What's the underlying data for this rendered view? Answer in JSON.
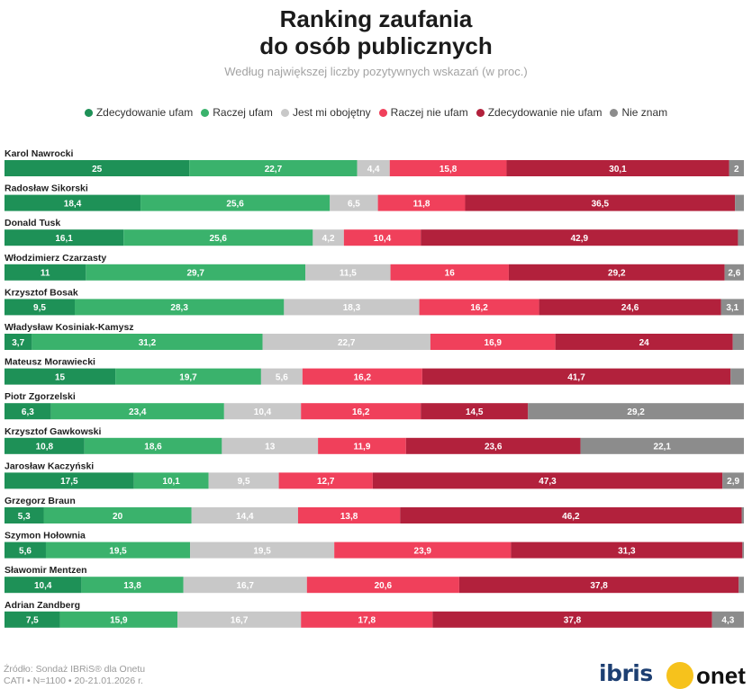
{
  "header": {
    "title_line1": "Ranking zaufania",
    "title_line2": "do osób publicznych",
    "subtitle": "Według największej liczby pozytywnych wskazań (w proc.)"
  },
  "legend": [
    {
      "label": "Zdecydowanie ufam",
      "color": "#1e9157"
    },
    {
      "label": "Raczej ufam",
      "color": "#3ab26c"
    },
    {
      "label": "Jest mi obojętny",
      "color": "#c8c8c8"
    },
    {
      "label": "Raczej nie ufam",
      "color": "#f0405b"
    },
    {
      "label": "Zdecydowanie nie ufam",
      "color": "#b2213c"
    },
    {
      "label": "Nie znam",
      "color": "#8c8c8c"
    }
  ],
  "chart_data": {
    "type": "stacked-bar-horizontal",
    "title": "Ranking zaufania do osób publicznych",
    "subtitle": "Według największej liczby pozytywnych wskazań (w proc.)",
    "xlim": [
      0,
      100
    ],
    "unit": "%",
    "series_names": [
      "Zdecydowanie ufam",
      "Raczej ufam",
      "Jest mi obojętny",
      "Raczej nie ufam",
      "Zdecydowanie nie ufam",
      "Nie znam"
    ],
    "series_colors": [
      "#1e9157",
      "#3ab26c",
      "#c8c8c8",
      "#f0405b",
      "#b2213c",
      "#8c8c8c"
    ],
    "label_colors": [
      "#ffffff",
      "#ffffff",
      "#ffffff",
      "#ffffff",
      "#ffffff",
      "#ffffff"
    ],
    "rows": [
      {
        "name": "Karol Nawrocki",
        "values": [
          25,
          22.7,
          4.4,
          15.8,
          30.1,
          2
        ],
        "labels": [
          "25",
          "22,7",
          "4,4",
          "15,8",
          "30,1",
          "2"
        ]
      },
      {
        "name": "Radosław Sikorski",
        "values": [
          18.4,
          25.6,
          6.5,
          11.8,
          36.5,
          1.2
        ],
        "labels": [
          "18,4",
          "25,6",
          "6,5",
          "11,8",
          "36,5",
          ""
        ]
      },
      {
        "name": "Donald Tusk",
        "values": [
          16.1,
          25.6,
          4.2,
          10.4,
          42.9,
          0.8
        ],
        "labels": [
          "16,1",
          "25,6",
          "4,2",
          "10,4",
          "42,9",
          ""
        ]
      },
      {
        "name": "Włodzimierz Czarzasty",
        "values": [
          11,
          29.7,
          11.5,
          16,
          29.2,
          2.6
        ],
        "labels": [
          "11",
          "29,7",
          "11,5",
          "16",
          "29,2",
          "2,6"
        ]
      },
      {
        "name": "Krzysztof Bosak",
        "values": [
          9.5,
          28.3,
          18.3,
          16.2,
          24.6,
          3.1
        ],
        "labels": [
          "9,5",
          "28,3",
          "18,3",
          "16,2",
          "24,6",
          "3,1"
        ]
      },
      {
        "name": "Władysław Kosiniak-Kamysz",
        "values": [
          3.7,
          31.2,
          22.7,
          16.9,
          24,
          1.5
        ],
        "labels": [
          "3,7",
          "31,2",
          "22,7",
          "16,9",
          "24",
          ""
        ]
      },
      {
        "name": "Mateusz Morawiecki",
        "values": [
          15,
          19.7,
          5.6,
          16.2,
          41.7,
          1.8
        ],
        "labels": [
          "15",
          "19,7",
          "5,6",
          "16,2",
          "41,7",
          ""
        ]
      },
      {
        "name": "Piotr Zgorzelski",
        "values": [
          6.3,
          23.4,
          10.4,
          16.2,
          14.5,
          29.2
        ],
        "labels": [
          "6,3",
          "23,4",
          "10,4",
          "16,2",
          "14,5",
          "29,2"
        ]
      },
      {
        "name": "Krzysztof Gawkowski",
        "values": [
          10.8,
          18.6,
          13,
          11.9,
          23.6,
          22.1
        ],
        "labels": [
          "10,8",
          "18,6",
          "13",
          "11,9",
          "23,6",
          "22,1"
        ]
      },
      {
        "name": "Jarosław Kaczyński",
        "values": [
          17.5,
          10.1,
          9.5,
          12.7,
          47.3,
          2.9
        ],
        "labels": [
          "17,5",
          "10,1",
          "9,5",
          "12,7",
          "47,3",
          "2,9"
        ]
      },
      {
        "name": "Grzegorz Braun",
        "values": [
          5.3,
          20,
          14.4,
          13.8,
          46.2,
          0.3
        ],
        "labels": [
          "5,3",
          "20",
          "14,4",
          "13,8",
          "46,2",
          ""
        ]
      },
      {
        "name": "Szymon Hołownia",
        "values": [
          5.6,
          19.5,
          19.5,
          23.9,
          31.3,
          0.2
        ],
        "labels": [
          "5,6",
          "19,5",
          "19,5",
          "23,9",
          "31,3",
          ""
        ]
      },
      {
        "name": "Sławomir Mentzen",
        "values": [
          10.4,
          13.8,
          16.7,
          20.6,
          37.8,
          0.7
        ],
        "labels": [
          "10,4",
          "13,8",
          "16,7",
          "20,6",
          "37,8",
          ""
        ]
      },
      {
        "name": "Adrian Zandberg",
        "values": [
          7.5,
          15.9,
          16.7,
          17.8,
          37.8,
          4.3
        ],
        "labels": [
          "7,5",
          "15,9",
          "16,7",
          "17,8",
          "37,8",
          "4,3"
        ]
      }
    ]
  },
  "footer": {
    "source_line1": "Źródło: Sondaż IBRiS® dla Onetu",
    "source_line2": "CATI • N=1100 • 20-21.01.2026 r.",
    "logo_ibris": "ibris",
    "logo_onet": "onet"
  }
}
